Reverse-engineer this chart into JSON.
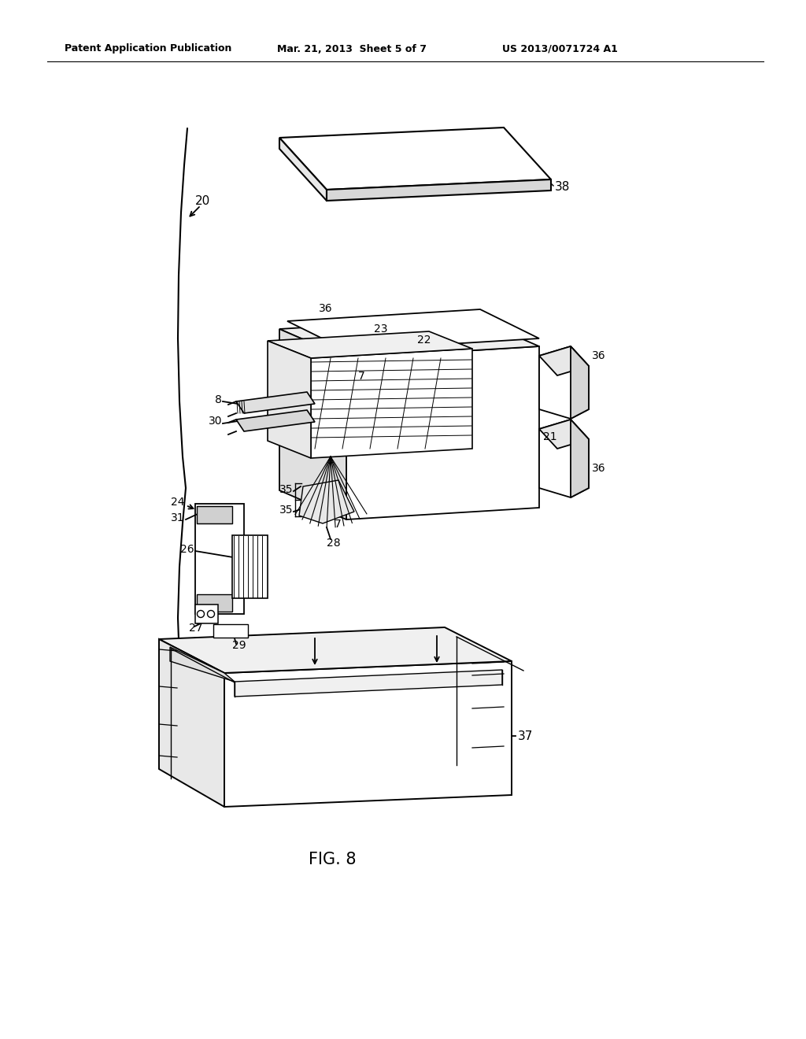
{
  "background_color": "#ffffff",
  "title_left": "Patent Application Publication",
  "title_mid": "Mar. 21, 2013  Sheet 5 of 7",
  "title_right": "US 2013/0071724 A1",
  "fig_label": "FIG. 8",
  "line_color": "#000000",
  "line_width": 1.3
}
